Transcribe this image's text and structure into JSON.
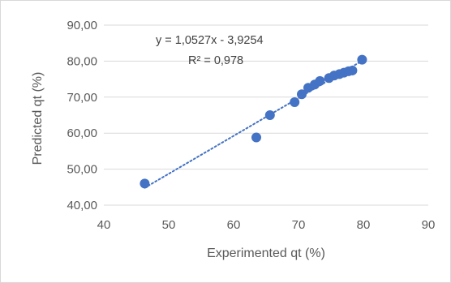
{
  "chart_data": {
    "type": "scatter",
    "xlabel": "Experimented qt (%)",
    "ylabel": "Predicted qt (%)",
    "xlim": [
      40,
      90
    ],
    "ylim": [
      40,
      90
    ],
    "x_ticks": [
      "40",
      "50",
      "60",
      "70",
      "80",
      "90"
    ],
    "y_ticks": [
      "40,00",
      "50,00",
      "60,00",
      "70,00",
      "80,00",
      "90,00"
    ],
    "grid": "horizontal",
    "series": [
      {
        "color": "#4472c4",
        "x": [
          46.3,
          63.5,
          65.6,
          69.4,
          70.5,
          71.5,
          72.5,
          73.3,
          74.7,
          75.5,
          76.3,
          77.0,
          77.7,
          78.3,
          79.8
        ],
        "y": [
          46.0,
          58.8,
          65.0,
          68.6,
          70.8,
          72.6,
          73.5,
          74.5,
          75.3,
          76.0,
          76.4,
          76.8,
          77.2,
          77.4,
          80.4
        ]
      }
    ],
    "trendline": {
      "type": "linear",
      "style": "dotted",
      "color": "#4472c4",
      "slope": 1.0527,
      "intercept": -3.9254,
      "x_range": [
        46.3,
        79.8
      ],
      "equation": "y = 1,0527x - 3,9254",
      "r_squared": "R² = 0,978"
    }
  }
}
